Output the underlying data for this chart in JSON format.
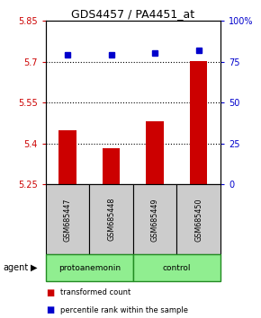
{
  "title": "GDS4457 / PA4451_at",
  "samples": [
    "GSM685447",
    "GSM685448",
    "GSM685449",
    "GSM685450"
  ],
  "bar_values": [
    5.448,
    5.383,
    5.483,
    5.703
  ],
  "percentile_values": [
    79,
    79,
    80,
    82
  ],
  "ylim_left": [
    5.25,
    5.85
  ],
  "ylim_right": [
    0,
    100
  ],
  "yticks_left": [
    5.25,
    5.4,
    5.55,
    5.7,
    5.85
  ],
  "yticks_right": [
    0,
    25,
    50,
    75,
    100
  ],
  "ytick_labels_right": [
    "0",
    "25",
    "50",
    "75",
    "100%"
  ],
  "hlines": [
    5.4,
    5.55,
    5.7
  ],
  "bar_color": "#cc0000",
  "percentile_color": "#0000cc",
  "bar_bottom": 5.25,
  "sample_box_color": "#cccccc",
  "group1_label": "protoanemonin",
  "group2_label": "control",
  "group_color": "#90ee90",
  "group_border_color": "#228B22",
  "agent_label": "agent",
  "legend_red_label": "transformed count",
  "legend_blue_label": "percentile rank within the sample",
  "bar_width": 0.4
}
